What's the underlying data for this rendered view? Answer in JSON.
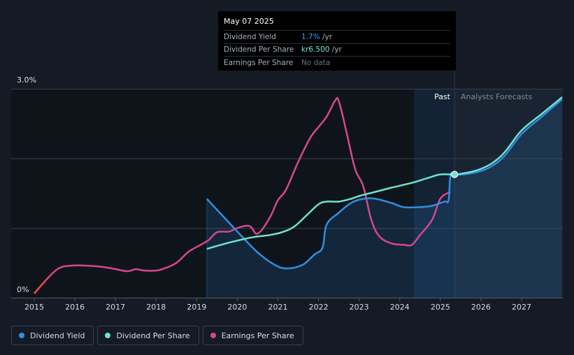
{
  "tooltip": {
    "date": "May 07 2025",
    "rows": [
      {
        "name": "Dividend Yield",
        "value": "1.7%",
        "unit": " /yr"
      },
      {
        "name": "Dividend Per Share",
        "value": "kr6.500",
        "unit": " /yr"
      },
      {
        "name": "Earnings Per Share",
        "value": "No data",
        "unit": ""
      }
    ]
  },
  "regions": {
    "past": "Past",
    "forecast": "Analysts Forecasts"
  },
  "legend": [
    {
      "label": "Dividend Yield",
      "color": "#2f8fe0"
    },
    {
      "label": "Dividend Per Share",
      "color": "#6fe3cf"
    },
    {
      "label": "Earnings Per Share",
      "color": "#d6478f"
    }
  ],
  "colors": {
    "background": "#151b24",
    "past_region": "#0f141b",
    "forecast_region": "#1a2331",
    "grid": "#39404c",
    "dividend_yield": "#2f8fe0",
    "dividend_per_share": "#6fe3cf",
    "earnings_per_share": "#d6478f",
    "eps_negative": "#e8453c"
  },
  "chart_data": {
    "type": "line",
    "x_ticks": [
      "2015",
      "2016",
      "2017",
      "2018",
      "2019",
      "2020",
      "2021",
      "2022",
      "2023",
      "2024",
      "2025",
      "2026",
      "2027"
    ],
    "xlim": [
      2014.6,
      2028.0
    ],
    "y_ticks": [
      "0%",
      "3.0%"
    ],
    "ylim": [
      0,
      3.0
    ],
    "forecast_start": 2025.35,
    "past_highlight_start": 2024.35,
    "series": [
      {
        "name": "Dividend Yield",
        "key": "dividend_yield",
        "area": true,
        "points": [
          [
            2019.25,
            1.42
          ],
          [
            2019.6,
            1.2
          ],
          [
            2020.0,
            0.95
          ],
          [
            2020.5,
            0.65
          ],
          [
            2020.9,
            0.48
          ],
          [
            2021.2,
            0.42
          ],
          [
            2021.6,
            0.47
          ],
          [
            2021.9,
            0.62
          ],
          [
            2022.1,
            0.72
          ],
          [
            2022.2,
            1.05
          ],
          [
            2022.5,
            1.22
          ],
          [
            2022.8,
            1.36
          ],
          [
            2023.1,
            1.42
          ],
          [
            2023.4,
            1.42
          ],
          [
            2023.8,
            1.36
          ],
          [
            2024.1,
            1.3
          ],
          [
            2024.5,
            1.3
          ],
          [
            2024.8,
            1.32
          ],
          [
            2025.1,
            1.38
          ],
          [
            2025.2,
            1.4
          ],
          [
            2025.25,
            1.76
          ],
          [
            2025.35,
            1.76
          ],
          [
            2025.7,
            1.78
          ],
          [
            2026.0,
            1.82
          ],
          [
            2026.3,
            1.9
          ],
          [
            2026.6,
            2.05
          ],
          [
            2027.0,
            2.35
          ],
          [
            2027.5,
            2.6
          ],
          [
            2028.0,
            2.85
          ]
        ]
      },
      {
        "name": "Dividend Per Share",
        "key": "dividend_per_share",
        "points": [
          [
            2019.25,
            0.7
          ],
          [
            2019.6,
            0.76
          ],
          [
            2020.0,
            0.82
          ],
          [
            2020.4,
            0.87
          ],
          [
            2020.8,
            0.9
          ],
          [
            2021.1,
            0.94
          ],
          [
            2021.4,
            1.02
          ],
          [
            2021.7,
            1.18
          ],
          [
            2022.0,
            1.34
          ],
          [
            2022.2,
            1.38
          ],
          [
            2022.5,
            1.38
          ],
          [
            2022.8,
            1.42
          ],
          [
            2023.0,
            1.46
          ],
          [
            2023.4,
            1.52
          ],
          [
            2023.8,
            1.58
          ],
          [
            2024.3,
            1.65
          ],
          [
            2024.7,
            1.72
          ],
          [
            2025.0,
            1.77
          ],
          [
            2025.35,
            1.77
          ],
          [
            2025.7,
            1.8
          ],
          [
            2026.0,
            1.85
          ],
          [
            2026.3,
            1.94
          ],
          [
            2026.6,
            2.1
          ],
          [
            2027.0,
            2.4
          ],
          [
            2027.5,
            2.64
          ],
          [
            2028.0,
            2.88
          ]
        ]
      },
      {
        "name": "Earnings Per Share",
        "key": "earnings_per_share",
        "points": [
          [
            2015.0,
            0.06
          ],
          [
            2015.3,
            0.26
          ],
          [
            2015.6,
            0.42
          ],
          [
            2015.9,
            0.46
          ],
          [
            2016.3,
            0.46
          ],
          [
            2016.7,
            0.44
          ],
          [
            2017.0,
            0.41
          ],
          [
            2017.3,
            0.38
          ],
          [
            2017.5,
            0.41
          ],
          [
            2017.7,
            0.39
          ],
          [
            2018.0,
            0.39
          ],
          [
            2018.2,
            0.42
          ],
          [
            2018.5,
            0.5
          ],
          [
            2018.8,
            0.66
          ],
          [
            2019.1,
            0.76
          ],
          [
            2019.3,
            0.83
          ],
          [
            2019.5,
            0.94
          ],
          [
            2019.8,
            0.95
          ],
          [
            2020.0,
            1.0
          ],
          [
            2020.3,
            1.03
          ],
          [
            2020.5,
            0.92
          ],
          [
            2020.8,
            1.15
          ],
          [
            2021.0,
            1.4
          ],
          [
            2021.2,
            1.55
          ],
          [
            2021.5,
            1.95
          ],
          [
            2021.8,
            2.3
          ],
          [
            2022.0,
            2.45
          ],
          [
            2022.2,
            2.6
          ],
          [
            2022.4,
            2.82
          ],
          [
            2022.5,
            2.82
          ],
          [
            2022.7,
            2.35
          ],
          [
            2022.9,
            1.85
          ],
          [
            2023.1,
            1.6
          ],
          [
            2023.3,
            1.12
          ],
          [
            2023.5,
            0.88
          ],
          [
            2023.8,
            0.78
          ],
          [
            2024.1,
            0.76
          ],
          [
            2024.3,
            0.76
          ],
          [
            2024.5,
            0.9
          ],
          [
            2024.8,
            1.12
          ],
          [
            2025.0,
            1.42
          ],
          [
            2025.25,
            1.52
          ]
        ]
      }
    ],
    "marker": {
      "x": 2025.35,
      "y": 1.77
    }
  }
}
